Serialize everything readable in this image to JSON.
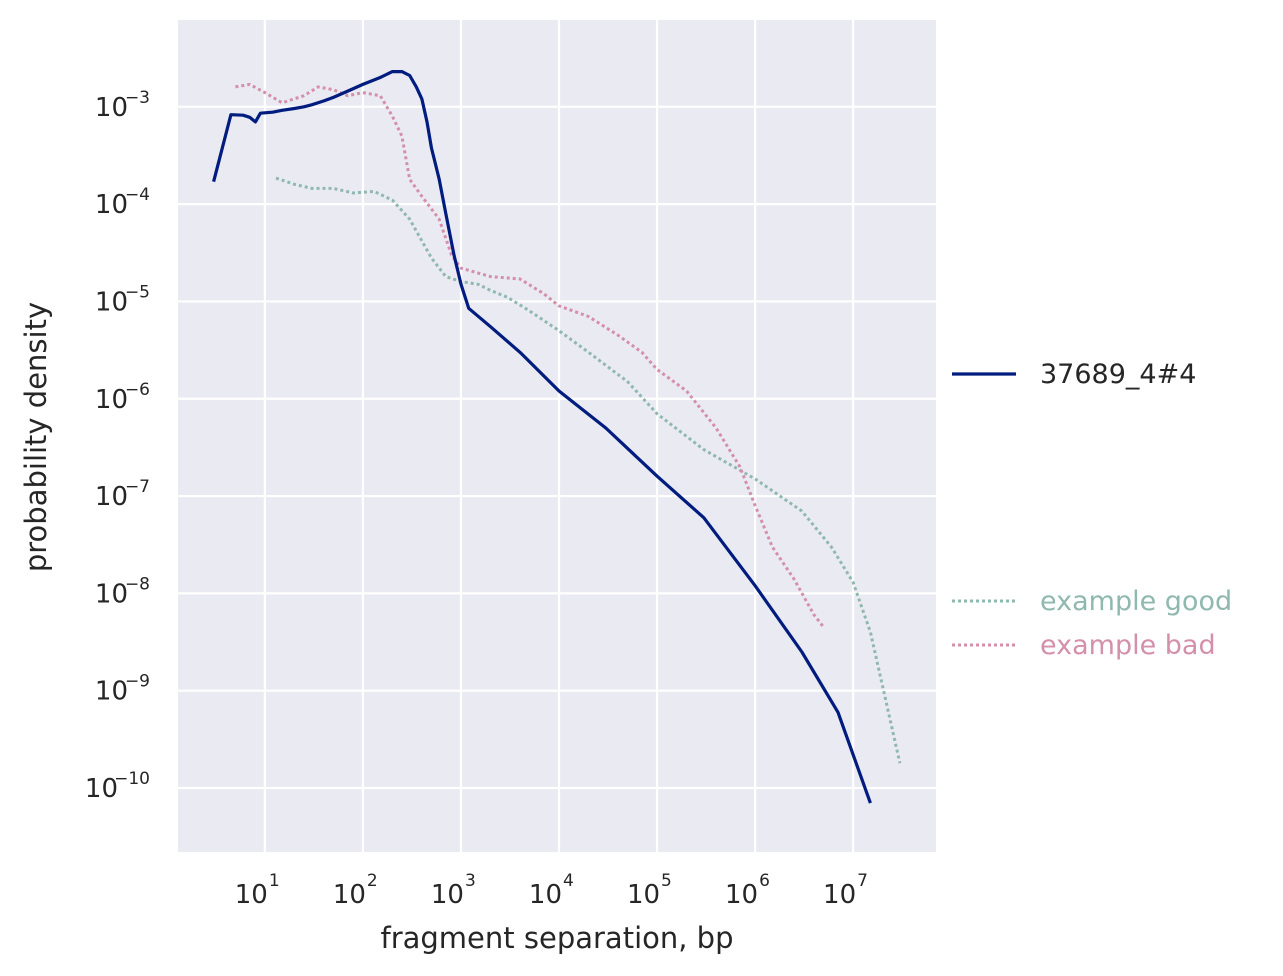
{
  "chart_data": {
    "type": "line",
    "title": "",
    "xlabel": "fragment separation, bp",
    "ylabel": "probability density",
    "x_scale": "log",
    "y_scale": "log",
    "xlim": [
      1.3,
      70000000
    ],
    "ylim": [
      2.2e-11,
      0.0078
    ],
    "grid": true,
    "x_ticks": [
      {
        "base": "10",
        "exp": "1",
        "value": 10
      },
      {
        "base": "10",
        "exp": "2",
        "value": 100
      },
      {
        "base": "10",
        "exp": "3",
        "value": 1000
      },
      {
        "base": "10",
        "exp": "4",
        "value": 10000
      },
      {
        "base": "10",
        "exp": "5",
        "value": 100000
      },
      {
        "base": "10",
        "exp": "6",
        "value": 1000000
      },
      {
        "base": "10",
        "exp": "7",
        "value": 10000000
      }
    ],
    "y_ticks": [
      {
        "base": "10",
        "exp": "−3",
        "value": 0.001
      },
      {
        "base": "10",
        "exp": "−4",
        "value": 0.0001
      },
      {
        "base": "10",
        "exp": "−5",
        "value": 1e-05
      },
      {
        "base": "10",
        "exp": "−6",
        "value": 1e-06
      },
      {
        "base": "10",
        "exp": "−7",
        "value": 1e-07
      },
      {
        "base": "10",
        "exp": "−8",
        "value": 1e-08
      },
      {
        "base": "10",
        "exp": "−9",
        "value": 1e-09
      },
      {
        "base": "10",
        "exp": "−10",
        "value": 1e-10
      }
    ],
    "legend_position": "right",
    "series": [
      {
        "name": "37689_4#4",
        "style": "solid",
        "color": "#001c7f",
        "points": [
          [
            3,
            0.00017
          ],
          [
            4.5,
            0.00083
          ],
          [
            6,
            0.00082
          ],
          [
            7,
            0.00078
          ],
          [
            8,
            0.0007
          ],
          [
            9,
            0.00086
          ],
          [
            12,
            0.00088
          ],
          [
            15,
            0.00092
          ],
          [
            20,
            0.00096
          ],
          [
            25,
            0.001
          ],
          [
            30,
            0.00105
          ],
          [
            40,
            0.00115
          ],
          [
            50,
            0.00125
          ],
          [
            70,
            0.00145
          ],
          [
            100,
            0.0017
          ],
          [
            150,
            0.002
          ],
          [
            200,
            0.0023
          ],
          [
            250,
            0.0023
          ],
          [
            300,
            0.0021
          ],
          [
            350,
            0.0016
          ],
          [
            400,
            0.0012
          ],
          [
            450,
            0.0007
          ],
          [
            500,
            0.00038
          ],
          [
            600,
            0.00018
          ],
          [
            700,
            8e-05
          ],
          [
            850,
            3e-05
          ],
          [
            1000,
            1.5e-05
          ],
          [
            1200,
            8.5e-06
          ],
          [
            2000,
            5.5e-06
          ],
          [
            4000,
            3e-06
          ],
          [
            10000,
            1.2e-06
          ],
          [
            30000,
            5e-07
          ],
          [
            100000,
            1.6e-07
          ],
          [
            300000,
            6e-08
          ],
          [
            1000000,
            1.2e-08
          ],
          [
            3000000,
            2.5e-09
          ],
          [
            7000000,
            6e-10
          ],
          [
            15000000,
            7e-11
          ]
        ]
      },
      {
        "name": "example good",
        "style": "dotted",
        "color": "#8fb8af",
        "points": [
          [
            13,
            0.000185
          ],
          [
            20,
            0.00016
          ],
          [
            30,
            0.000145
          ],
          [
            50,
            0.000145
          ],
          [
            80,
            0.00013
          ],
          [
            130,
            0.000135
          ],
          [
            200,
            0.00011
          ],
          [
            300,
            7e-05
          ],
          [
            500,
            2.8e-05
          ],
          [
            700,
            1.8e-05
          ],
          [
            1000,
            1.6e-05
          ],
          [
            1500,
            1.5e-05
          ],
          [
            2000,
            1.3e-05
          ],
          [
            3000,
            1.1e-05
          ],
          [
            5000,
            8e-06
          ],
          [
            10000,
            5e-06
          ],
          [
            20000,
            3e-06
          ],
          [
            50000,
            1.5e-06
          ],
          [
            100000,
            7e-07
          ],
          [
            300000,
            3e-07
          ],
          [
            1000000,
            1.5e-07
          ],
          [
            3000000,
            7e-08
          ],
          [
            6000000,
            3e-08
          ],
          [
            10000000,
            1.3e-08
          ],
          [
            15000000,
            4e-09
          ],
          [
            30000000,
            1.8e-10
          ]
        ]
      },
      {
        "name": "example bad",
        "style": "dotted",
        "color": "#d48fab",
        "points": [
          [
            5,
            0.0016
          ],
          [
            7,
            0.0017
          ],
          [
            10,
            0.0014
          ],
          [
            15,
            0.0011
          ],
          [
            25,
            0.0013
          ],
          [
            35,
            0.0016
          ],
          [
            50,
            0.0015
          ],
          [
            70,
            0.0013
          ],
          [
            100,
            0.0014
          ],
          [
            150,
            0.0013
          ],
          [
            200,
            0.0008
          ],
          [
            250,
            0.0005
          ],
          [
            300,
            0.00018
          ],
          [
            400,
            0.00012
          ],
          [
            600,
            7e-05
          ],
          [
            800,
            3e-05
          ],
          [
            1000,
            2.2e-05
          ],
          [
            2000,
            1.8e-05
          ],
          [
            4000,
            1.7e-05
          ],
          [
            7000,
            1.2e-05
          ],
          [
            10000,
            9e-06
          ],
          [
            20000,
            7e-06
          ],
          [
            40000,
            4.5e-06
          ],
          [
            70000,
            3e-06
          ],
          [
            100000,
            2e-06
          ],
          [
            200000,
            1.2e-06
          ],
          [
            400000,
            5e-07
          ],
          [
            700000,
            2e-07
          ],
          [
            1000000,
            8e-08
          ],
          [
            1500000,
            3e-08
          ],
          [
            2500000,
            1.4e-08
          ],
          [
            4000000,
            6e-09
          ],
          [
            5000000,
            4.5e-09
          ]
        ]
      }
    ]
  }
}
